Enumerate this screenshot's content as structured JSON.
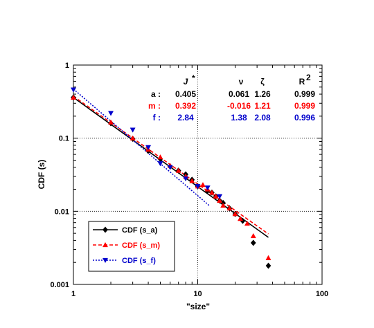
{
  "chart_data": {
    "type": "scatter",
    "xlabel": "\"size\"",
    "ylabel": "CDF (s)",
    "xscale": "log",
    "yscale": "log",
    "xlim": [
      1,
      100
    ],
    "ylim": [
      0.001,
      1
    ],
    "grid": "dotted at decades",
    "x_ticks": [
      "1",
      "10",
      "100"
    ],
    "y_ticks": [
      "1",
      "0.1",
      "0.01",
      "0.001"
    ],
    "legend_placement": "bottom-left",
    "table": {
      "headers": [
        "J *",
        "ν",
        "ζ",
        "R2"
      ],
      "rows": [
        {
          "label": "a :",
          "color": "#000000",
          "values": [
            "0.405",
            "0.061",
            "1.26",
            "0.999"
          ]
        },
        {
          "label": "m :",
          "color": "#ff0000",
          "values": [
            "0.392",
            "-0.016",
            "1.21",
            "0.999"
          ]
        },
        {
          "label": "f :",
          "color": "#0000cc",
          "values": [
            "2.84",
            "1.38",
            "2.08",
            "0.996"
          ]
        }
      ]
    },
    "series": [
      {
        "name": "CDF (s_a)",
        "color": "#000000",
        "marker": "diamond",
        "line_style": "solid",
        "points": [
          [
            1,
            0.36
          ],
          [
            2,
            0.16
          ],
          [
            3,
            0.098
          ],
          [
            4,
            0.067
          ],
          [
            5,
            0.052
          ],
          [
            6,
            0.041
          ],
          [
            7,
            0.036
          ],
          [
            8,
            0.032
          ],
          [
            9,
            0.027
          ],
          [
            10,
            0.022
          ],
          [
            12,
            0.019
          ],
          [
            13,
            0.018
          ],
          [
            14,
            0.016
          ],
          [
            15,
            0.014
          ],
          [
            16,
            0.013
          ],
          [
            18,
            0.011
          ],
          [
            20,
            0.0092
          ],
          [
            23,
            0.0074
          ],
          [
            28,
            0.0037
          ],
          [
            37,
            0.0018
          ]
        ],
        "fit": [
          [
            1,
            0.36
          ],
          [
            37,
            0.0044
          ]
        ]
      },
      {
        "name": "CDF (s_m)",
        "color": "#ff0000",
        "marker": "triangle-up",
        "line_style": "dashed",
        "points": [
          [
            1,
            0.36
          ],
          [
            2,
            0.165
          ],
          [
            3,
            0.1
          ],
          [
            4,
            0.07
          ],
          [
            5,
            0.055
          ],
          [
            6,
            0.042
          ],
          [
            7,
            0.036
          ],
          [
            8,
            0.03
          ],
          [
            9,
            0.026
          ],
          [
            10,
            0.022
          ],
          [
            11,
            0.023
          ],
          [
            12,
            0.02
          ],
          [
            13,
            0.018
          ],
          [
            14,
            0.016
          ],
          [
            15,
            0.014
          ],
          [
            16,
            0.012
          ],
          [
            18,
            0.011
          ],
          [
            20,
            0.0092
          ],
          [
            22,
            0.0079
          ],
          [
            25,
            0.0068
          ],
          [
            28,
            0.0046
          ],
          [
            37,
            0.0023
          ]
        ],
        "fit": [
          [
            1,
            0.375
          ],
          [
            37,
            0.0049
          ]
        ]
      },
      {
        "name": "CDF (s_f)",
        "color": "#0000cc",
        "marker": "triangle-down",
        "line_style": "dotted",
        "points": [
          [
            1,
            0.46
          ],
          [
            2,
            0.22
          ],
          [
            3,
            0.13
          ],
          [
            4,
            0.075
          ],
          [
            5,
            0.045
          ],
          [
            6,
            0.04
          ],
          [
            8,
            0.028
          ],
          [
            10,
            0.022
          ],
          [
            12,
            0.021
          ],
          [
            15,
            0.016
          ]
        ],
        "fit": [
          [
            1,
            0.47
          ],
          [
            12.5,
            0.0118
          ]
        ]
      }
    ]
  }
}
